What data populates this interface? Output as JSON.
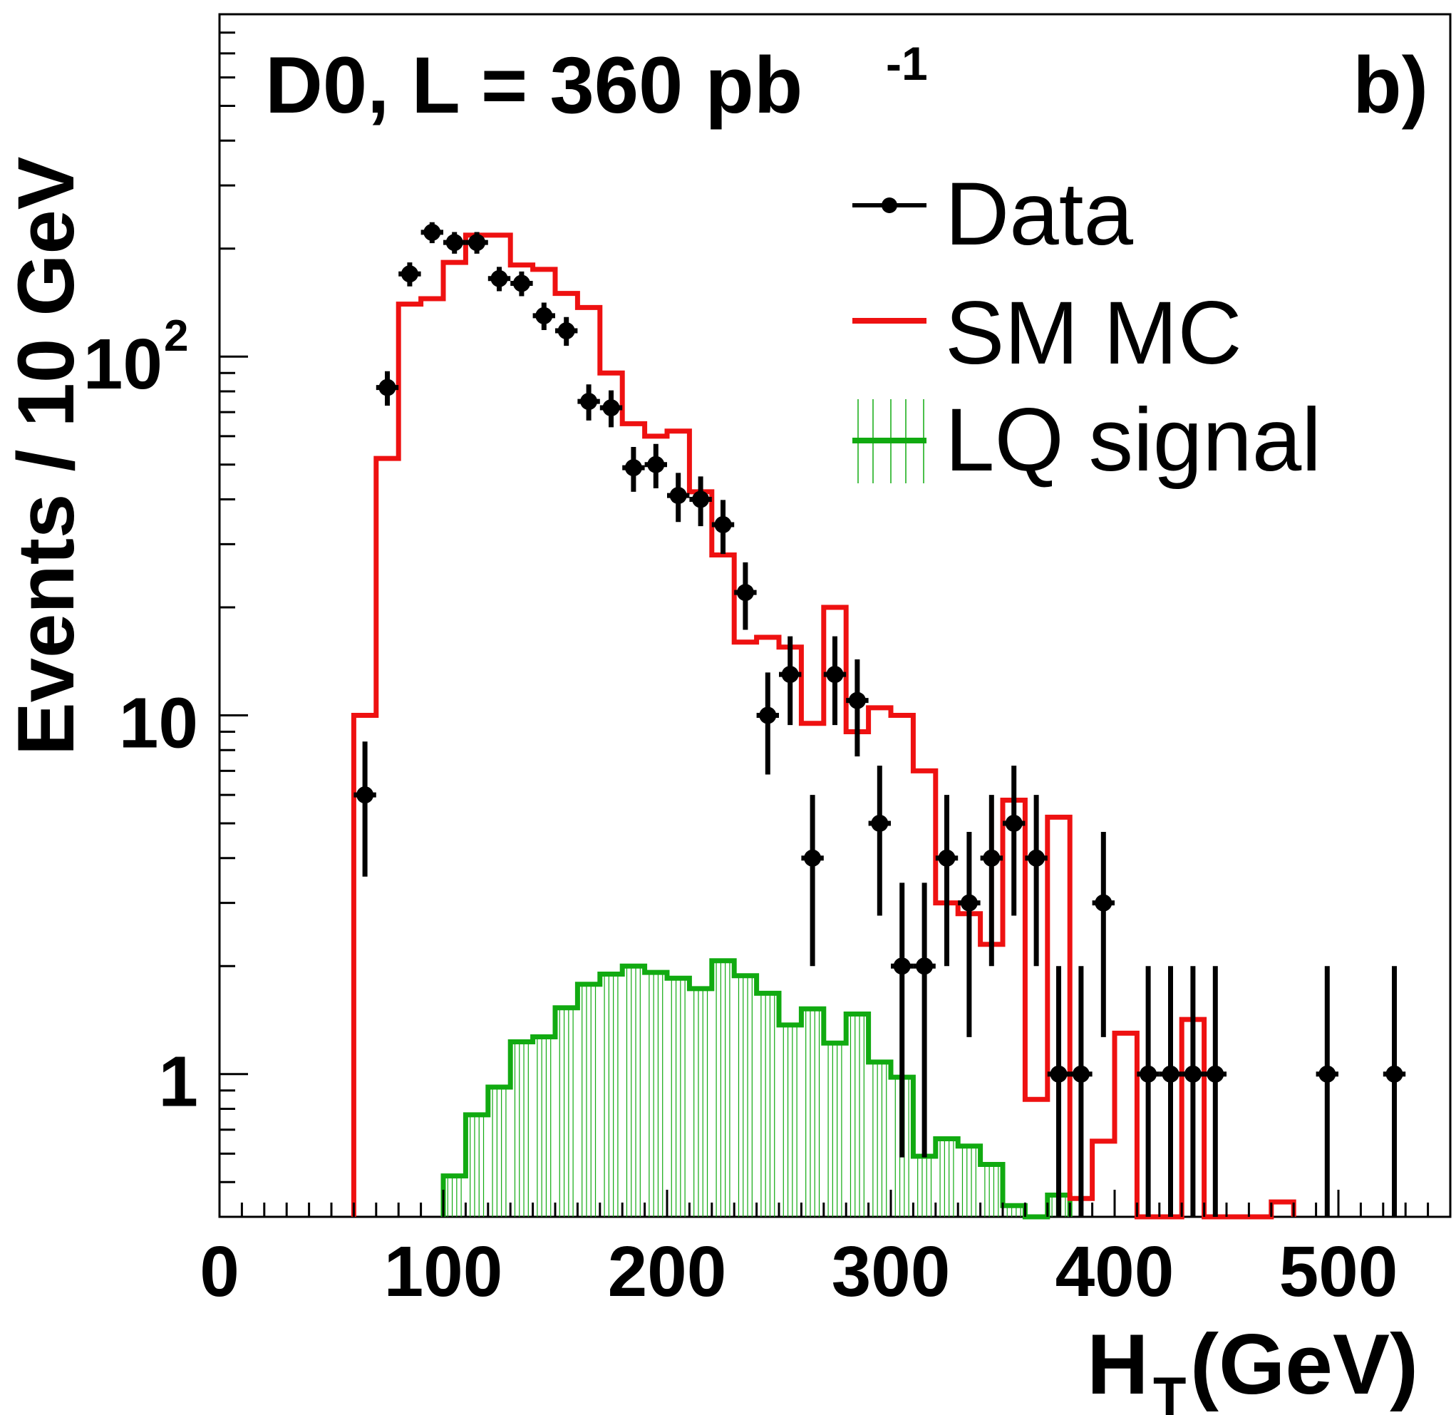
{
  "chart_data": {
    "type": "histogram",
    "title": "D0, L = 360 pb",
    "title_superscript": "-1",
    "panel_label": "b)",
    "xlabel": "H",
    "xlabel_subscript": "T",
    "xlabel_unit": "(GeV)",
    "ylabel": "Events / 10 GeV",
    "xlim": [
      0,
      550
    ],
    "ylim": [
      0.4,
      900
    ],
    "yscale": "log",
    "grid": false,
    "legend_position": "top-right",
    "x_ticks": [
      "0",
      "100",
      "200",
      "300",
      "400",
      "500"
    ],
    "y_ticks": [
      {
        "value": 1,
        "label": "1"
      },
      {
        "value": 10,
        "label": "10"
      },
      {
        "value": 100,
        "label": "10",
        "exp": "2"
      }
    ],
    "legend": [
      {
        "label": "Data",
        "kind": "points",
        "color": "#000000"
      },
      {
        "label": "SM MC",
        "kind": "line",
        "color": "#ee1111"
      },
      {
        "label": "LQ signal",
        "kind": "hatched",
        "color": "#11aa11"
      }
    ],
    "series": [
      {
        "name": "Data",
        "type": "points",
        "color": "#000000",
        "x": [
          65,
          75,
          85,
          95,
          105,
          115,
          125,
          135,
          145,
          155,
          165,
          175,
          185,
          195,
          205,
          215,
          225,
          235,
          245,
          255,
          265,
          275,
          285,
          295,
          305,
          315,
          325,
          335,
          345,
          355,
          365,
          375,
          385,
          395,
          415,
          425,
          435,
          445,
          495,
          525
        ],
        "y": [
          6,
          82,
          170,
          222,
          208,
          208,
          165,
          160,
          130,
          118,
          75,
          72,
          49,
          50,
          41,
          40,
          34,
          22,
          10,
          13,
          4,
          13,
          11,
          5,
          2,
          2,
          4,
          3,
          4,
          5,
          4,
          1,
          1,
          3,
          1,
          1,
          1,
          1,
          1,
          1
        ]
      },
      {
        "name": "SM MC",
        "type": "step",
        "color": "#ee1111",
        "edges": [
          60,
          70,
          80,
          90,
          100,
          110,
          120,
          130,
          140,
          150,
          160,
          170,
          180,
          190,
          200,
          210,
          220,
          230,
          240,
          250,
          260,
          270,
          280,
          290,
          300,
          310,
          320,
          330,
          340,
          350,
          360,
          370,
          380,
          390,
          400,
          410,
          420,
          430,
          440,
          450,
          460,
          470,
          480
        ],
        "values": [
          10,
          52,
          140,
          145,
          183,
          218,
          218,
          180,
          175,
          150,
          137,
          90,
          65,
          60,
          62,
          42,
          28,
          16,
          16.5,
          15.5,
          9.5,
          20,
          9,
          10.5,
          10,
          7,
          3,
          2.8,
          2.3,
          5.8,
          0.85,
          5.2,
          0.45,
          0.65,
          1.3,
          0.4,
          0.4,
          1.42,
          0.4,
          0.4,
          0.4,
          0.44,
          0.4
        ]
      },
      {
        "name": "LQ signal",
        "type": "step",
        "color": "#11aa11",
        "edges": [
          100,
          110,
          120,
          130,
          140,
          150,
          160,
          170,
          180,
          190,
          200,
          210,
          220,
          230,
          240,
          250,
          260,
          270,
          280,
          290,
          300,
          310,
          320,
          330,
          340,
          350,
          360,
          370,
          380
        ],
        "values": [
          0.52,
          0.77,
          0.92,
          1.23,
          1.27,
          1.53,
          1.78,
          1.9,
          2.0,
          1.92,
          1.85,
          1.73,
          2.07,
          1.88,
          1.68,
          1.37,
          1.52,
          1.22,
          1.47,
          1.08,
          0.98,
          0.59,
          0.66,
          0.63,
          0.56,
          0.43,
          0.4,
          0.46,
          0.4
        ]
      }
    ]
  }
}
